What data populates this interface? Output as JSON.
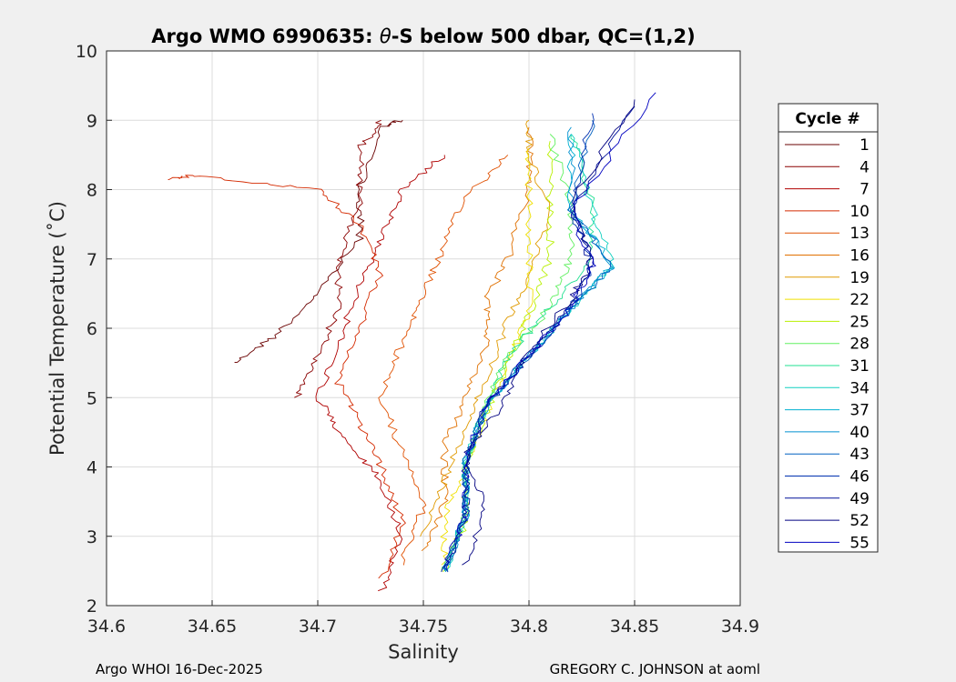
{
  "chart_data": {
    "type": "line",
    "title_prefix": "Argo WMO 6990635: ",
    "title_theta": "θ",
    "title_suffix": "-S below 500 dbar,  QC=(1,2)",
    "xlabel": "Salinity",
    "ylabel": "Potential Temperature (˚C)",
    "xlim": [
      34.6,
      34.9
    ],
    "ylim": [
      2,
      10
    ],
    "xticks": [
      "34.6",
      "34.65",
      "34.7",
      "34.75",
      "34.8",
      "34.85",
      "34.9"
    ],
    "yticks": [
      "2",
      "3",
      "4",
      "5",
      "6",
      "7",
      "8",
      "9",
      "10"
    ],
    "grid": true,
    "legend": {
      "title": "Cycle #",
      "placement": "right-outside",
      "entries": [
        "1",
        "4",
        "7",
        "10",
        "13",
        "16",
        "19",
        "22",
        "25",
        "28",
        "31",
        "34",
        "37",
        "40",
        "43",
        "46",
        "49",
        "52",
        "55"
      ],
      "colors": [
        "#6a0000",
        "#8a0000",
        "#b00000",
        "#d42a00",
        "#e05000",
        "#e07000",
        "#e09a00",
        "#f0e000",
        "#b8f000",
        "#60f060",
        "#20e090",
        "#10d0c0",
        "#00b0d0",
        "#0090d0",
        "#0060c0",
        "#0030b0",
        "#00109a",
        "#000080",
        "#0000c0"
      ]
    },
    "series": [
      {
        "name": "1",
        "points": [
          [
            34.66,
            5.5
          ],
          [
            34.68,
            5.9
          ],
          [
            34.7,
            6.5
          ],
          [
            34.72,
            7.3
          ],
          [
            34.72,
            8.0
          ],
          [
            34.73,
            8.9
          ],
          [
            34.74,
            9.0
          ]
        ]
      },
      {
        "name": "4",
        "points": [
          [
            34.69,
            5.0
          ],
          [
            34.7,
            5.6
          ],
          [
            34.71,
            6.3
          ],
          [
            34.71,
            7.0
          ],
          [
            34.72,
            7.8
          ],
          [
            34.72,
            8.6
          ],
          [
            34.73,
            9.0
          ]
        ]
      },
      {
        "name": "7",
        "points": [
          [
            34.73,
            2.2
          ],
          [
            34.74,
            3.0
          ],
          [
            34.73,
            3.8
          ],
          [
            34.71,
            4.5
          ],
          [
            34.7,
            5.0
          ],
          [
            34.71,
            5.8
          ],
          [
            34.72,
            6.6
          ],
          [
            34.73,
            7.3
          ],
          [
            34.74,
            8.0
          ],
          [
            34.76,
            8.5
          ]
        ]
      },
      {
        "name": "10",
        "points": [
          [
            34.73,
            2.4
          ],
          [
            34.74,
            3.2
          ],
          [
            34.73,
            4.0
          ],
          [
            34.72,
            4.6
          ],
          [
            34.71,
            5.2
          ],
          [
            34.72,
            6.0
          ],
          [
            34.73,
            6.8
          ],
          [
            34.72,
            7.5
          ],
          [
            34.7,
            8.0
          ],
          [
            34.64,
            8.2
          ],
          [
            34.63,
            8.15
          ]
        ]
      },
      {
        "name": "13",
        "points": [
          [
            34.74,
            2.6
          ],
          [
            34.75,
            3.4
          ],
          [
            34.74,
            4.2
          ],
          [
            34.73,
            5.0
          ],
          [
            34.74,
            5.8
          ],
          [
            34.75,
            6.5
          ],
          [
            34.76,
            7.2
          ],
          [
            34.77,
            7.9
          ],
          [
            34.79,
            8.5
          ]
        ]
      },
      {
        "name": "16",
        "points": [
          [
            34.75,
            2.8
          ],
          [
            34.76,
            3.5
          ],
          [
            34.76,
            4.3
          ],
          [
            34.77,
            5.0
          ],
          [
            34.78,
            5.8
          ],
          [
            34.78,
            6.4
          ],
          [
            34.79,
            7.0
          ],
          [
            34.8,
            8.0
          ],
          [
            34.8,
            8.9
          ]
        ]
      },
      {
        "name": "19",
        "points": [
          [
            34.75,
            3.0
          ],
          [
            34.76,
            3.8
          ],
          [
            34.77,
            4.6
          ],
          [
            34.78,
            5.3
          ],
          [
            34.79,
            6.1
          ],
          [
            34.8,
            6.8
          ],
          [
            34.81,
            7.6
          ],
          [
            34.8,
            8.5
          ],
          [
            34.8,
            9.0
          ]
        ]
      },
      {
        "name": "22",
        "points": [
          [
            34.76,
            2.6
          ],
          [
            34.76,
            3.3
          ],
          [
            34.77,
            4.0
          ],
          [
            34.78,
            4.8
          ],
          [
            34.79,
            5.5
          ],
          [
            34.8,
            6.2
          ],
          [
            34.8,
            7.0
          ],
          [
            34.8,
            7.8
          ],
          [
            34.8,
            8.6
          ]
        ]
      },
      {
        "name": "25",
        "points": [
          [
            34.76,
            2.5
          ],
          [
            34.77,
            3.2
          ],
          [
            34.77,
            4.0
          ],
          [
            34.78,
            4.8
          ],
          [
            34.79,
            5.5
          ],
          [
            34.8,
            6.2
          ],
          [
            34.81,
            7.0
          ],
          [
            34.81,
            7.8
          ],
          [
            34.81,
            8.7
          ]
        ]
      },
      {
        "name": "28",
        "points": [
          [
            34.76,
            2.5
          ],
          [
            34.77,
            3.3
          ],
          [
            34.77,
            4.1
          ],
          [
            34.78,
            4.9
          ],
          [
            34.79,
            5.6
          ],
          [
            34.81,
            6.3
          ],
          [
            34.82,
            7.0
          ],
          [
            34.82,
            7.8
          ],
          [
            34.81,
            8.8
          ]
        ]
      },
      {
        "name": "31",
        "points": [
          [
            34.76,
            2.5
          ],
          [
            34.77,
            3.3
          ],
          [
            34.77,
            4.1
          ],
          [
            34.78,
            4.9
          ],
          [
            34.79,
            5.6
          ],
          [
            34.81,
            6.3
          ],
          [
            34.83,
            7.0
          ],
          [
            34.83,
            7.8
          ],
          [
            34.82,
            8.8
          ]
        ]
      },
      {
        "name": "34",
        "points": [
          [
            34.76,
            2.5
          ],
          [
            34.77,
            3.3
          ],
          [
            34.77,
            4.1
          ],
          [
            34.78,
            4.9
          ],
          [
            34.8,
            5.6
          ],
          [
            34.82,
            6.3
          ],
          [
            34.84,
            6.9
          ],
          [
            34.83,
            7.7
          ],
          [
            34.82,
            8.8
          ]
        ]
      },
      {
        "name": "37",
        "points": [
          [
            34.76,
            2.5
          ],
          [
            34.77,
            3.3
          ],
          [
            34.77,
            4.1
          ],
          [
            34.78,
            4.9
          ],
          [
            34.8,
            5.6
          ],
          [
            34.82,
            6.3
          ],
          [
            34.84,
            6.9
          ],
          [
            34.82,
            7.7
          ],
          [
            34.82,
            8.8
          ]
        ]
      },
      {
        "name": "40",
        "points": [
          [
            34.76,
            2.5
          ],
          [
            34.77,
            3.3
          ],
          [
            34.77,
            4.1
          ],
          [
            34.78,
            4.9
          ],
          [
            34.8,
            5.6
          ],
          [
            34.82,
            6.3
          ],
          [
            34.84,
            6.9
          ],
          [
            34.82,
            7.7
          ],
          [
            34.82,
            8.9
          ]
        ]
      },
      {
        "name": "43",
        "points": [
          [
            34.76,
            2.5
          ],
          [
            34.77,
            3.3
          ],
          [
            34.77,
            4.1
          ],
          [
            34.78,
            4.9
          ],
          [
            34.8,
            5.6
          ],
          [
            34.82,
            6.3
          ],
          [
            34.84,
            6.9
          ],
          [
            34.82,
            7.7
          ],
          [
            34.83,
            9.0
          ]
        ]
      },
      {
        "name": "46",
        "points": [
          [
            34.76,
            2.5
          ],
          [
            34.77,
            3.3
          ],
          [
            34.77,
            4.1
          ],
          [
            34.78,
            4.9
          ],
          [
            34.8,
            5.6
          ],
          [
            34.82,
            6.3
          ],
          [
            34.83,
            6.9
          ],
          [
            34.82,
            7.7
          ],
          [
            34.83,
            9.1
          ]
        ]
      },
      {
        "name": "49",
        "points": [
          [
            34.76,
            2.5
          ],
          [
            34.77,
            3.3
          ],
          [
            34.77,
            4.1
          ],
          [
            34.78,
            4.9
          ],
          [
            34.8,
            5.6
          ],
          [
            34.82,
            6.3
          ],
          [
            34.83,
            6.9
          ],
          [
            34.82,
            7.7
          ],
          [
            34.85,
            9.2
          ]
        ]
      },
      {
        "name": "52",
        "points": [
          [
            34.77,
            2.6
          ],
          [
            34.78,
            3.4
          ],
          [
            34.77,
            4.2
          ],
          [
            34.79,
            5.0
          ],
          [
            34.8,
            5.7
          ],
          [
            34.82,
            6.4
          ],
          [
            34.83,
            7.0
          ],
          [
            34.82,
            7.8
          ],
          [
            34.85,
            9.3
          ]
        ]
      },
      {
        "name": "55",
        "points": [
          [
            34.76,
            2.5
          ],
          [
            34.77,
            3.3
          ],
          [
            34.77,
            4.1
          ],
          [
            34.78,
            4.9
          ],
          [
            34.8,
            5.6
          ],
          [
            34.82,
            6.3
          ],
          [
            34.83,
            6.9
          ],
          [
            34.82,
            7.7
          ],
          [
            34.86,
            9.4
          ]
        ]
      }
    ]
  },
  "footer": {
    "left": "Argo WHOI 16-Dec-2025",
    "right": "GREGORY C. JOHNSON at aoml"
  }
}
